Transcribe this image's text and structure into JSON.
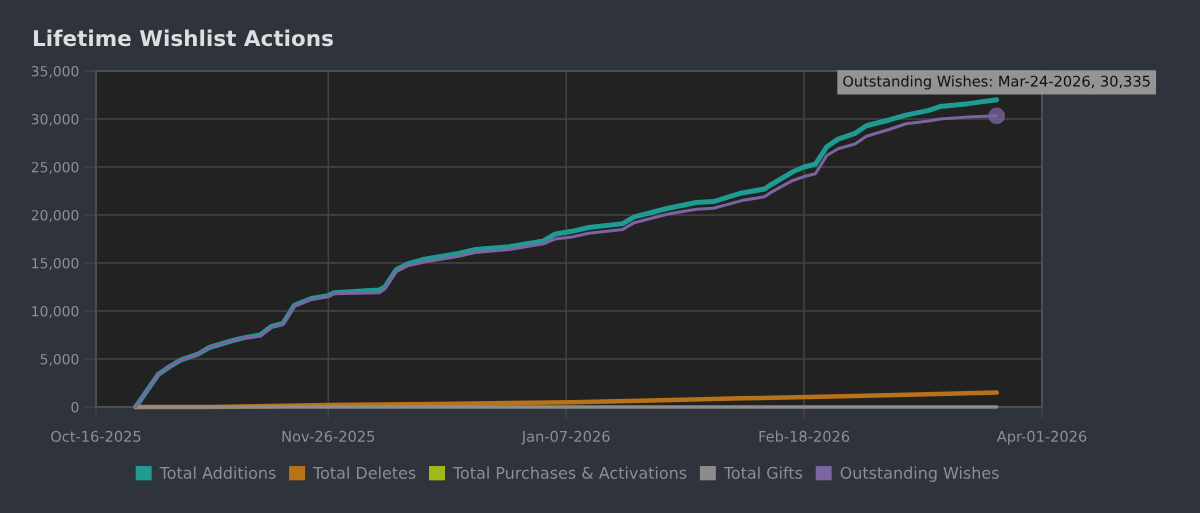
{
  "chart_data": {
    "type": "line",
    "title": "Lifetime Wishlist Actions",
    "xlim": [
      "2025-10-16",
      "2026-04-01"
    ],
    "xticks": [
      {
        "value": "2025-10-16",
        "label": "Oct-16-2025"
      },
      {
        "value": "2025-11-26",
        "label": "Nov-26-2025"
      },
      {
        "value": "2026-01-07",
        "label": "Jan-07-2026"
      },
      {
        "value": "2026-02-18",
        "label": "Feb-18-2026"
      },
      {
        "value": "2026-04-01",
        "label": "Apr-01-2026"
      }
    ],
    "ylim": [
      0,
      35000
    ],
    "yticks": [
      0,
      {
        "value": 5000,
        "label": "5,000"
      },
      {
        "value": 10000,
        "label": "10,000"
      },
      {
        "value": 15000,
        "label": "15,000"
      },
      {
        "value": 20000,
        "label": "20,000"
      },
      {
        "value": 25000,
        "label": "25,000"
      },
      {
        "value": 30000,
        "label": "30,000"
      },
      {
        "value": 35000,
        "label": "35,000"
      }
    ],
    "grid": true,
    "legend": "bottom",
    "series": [
      {
        "name": "Total Additions",
        "color": "#1e9c94",
        "x": [
          "2025-10-23",
          "2025-10-27",
          "2025-10-29",
          "2025-10-31",
          "2025-11-03",
          "2025-11-05",
          "2025-11-09",
          "2025-11-11",
          "2025-11-14",
          "2025-11-16",
          "2025-11-18",
          "2025-11-20",
          "2025-11-23",
          "2025-11-26",
          "2025-11-27",
          "2025-12-05",
          "2025-12-06",
          "2025-12-08",
          "2025-12-10",
          "2025-12-13",
          "2025-12-19",
          "2025-12-22",
          "2025-12-28",
          "2026-01-03",
          "2026-01-05",
          "2026-01-08",
          "2026-01-11",
          "2026-01-17",
          "2026-01-19",
          "2026-01-25",
          "2026-01-30",
          "2026-02-02",
          "2026-02-07",
          "2026-02-11",
          "2026-02-12",
          "2026-02-16",
          "2026-02-18",
          "2026-02-20",
          "2026-02-22",
          "2026-02-24",
          "2026-02-27",
          "2026-03-01",
          "2026-03-05",
          "2026-03-08",
          "2026-03-12",
          "2026-03-14",
          "2026-03-19",
          "2026-03-24"
        ],
        "values": [
          0,
          3400,
          4200,
          4900,
          5500,
          6200,
          6900,
          7200,
          7500,
          8400,
          8700,
          10600,
          11300,
          11600,
          11900,
          12200,
          12500,
          14300,
          14900,
          15400,
          16000,
          16400,
          16700,
          17300,
          18000,
          18300,
          18700,
          19100,
          19800,
          20700,
          21300,
          21400,
          22300,
          22700,
          23100,
          24500,
          25000,
          25300,
          27100,
          27900,
          28500,
          29300,
          29900,
          30400,
          30900,
          31300,
          31600,
          32000
        ]
      },
      {
        "name": "Total Deletes",
        "color": "#b8731a",
        "x": [
          "2025-10-23",
          "2025-11-05",
          "2025-11-26",
          "2025-12-15",
          "2026-01-08",
          "2026-01-24",
          "2026-02-07",
          "2026-02-23",
          "2026-03-10",
          "2026-03-24"
        ],
        "values": [
          0,
          0,
          200,
          300,
          500,
          700,
          900,
          1100,
          1300,
          1500
        ]
      },
      {
        "name": "Total Purchases & Activations",
        "color": "#a0b81a"
      },
      {
        "name": "Total Gifts",
        "color": "#8c8c8c",
        "x": [
          "2025-10-23",
          "2026-03-24"
        ],
        "values": [
          0,
          0
        ]
      },
      {
        "name": "Outstanding Wishes",
        "color": "#7b649f",
        "x": [
          "2025-10-23",
          "2025-10-27",
          "2025-10-29",
          "2025-10-31",
          "2025-11-03",
          "2025-11-05",
          "2025-11-09",
          "2025-11-11",
          "2025-11-14",
          "2025-11-16",
          "2025-11-18",
          "2025-11-20",
          "2025-11-23",
          "2025-11-26",
          "2025-11-27",
          "2025-12-05",
          "2025-12-06",
          "2025-12-08",
          "2025-12-10",
          "2025-12-13",
          "2025-12-19",
          "2025-12-22",
          "2025-12-28",
          "2026-01-03",
          "2026-01-05",
          "2026-01-08",
          "2026-01-11",
          "2026-01-17",
          "2026-01-19",
          "2026-01-25",
          "2026-01-30",
          "2026-02-02",
          "2026-02-07",
          "2026-02-11",
          "2026-02-12",
          "2026-02-16",
          "2026-02-18",
          "2026-02-20",
          "2026-02-22",
          "2026-02-24",
          "2026-02-27",
          "2026-03-01",
          "2026-03-05",
          "2026-03-08",
          "2026-03-12",
          "2026-03-14",
          "2026-03-19",
          "2026-03-24"
        ],
        "values": [
          0,
          3400,
          4200,
          4900,
          5500,
          6200,
          6900,
          7200,
          7400,
          8300,
          8600,
          10500,
          11200,
          11500,
          11800,
          11900,
          12300,
          14100,
          14700,
          15100,
          15700,
          16100,
          16400,
          17000,
          17500,
          17700,
          18100,
          18500,
          19200,
          20100,
          20600,
          20700,
          21500,
          21900,
          22300,
          23600,
          24000,
          24300,
          26200,
          26900,
          27400,
          28200,
          28900,
          29500,
          29800,
          30000,
          30200,
          30335
        ]
      }
    ],
    "annotations": [
      {
        "text": "Outstanding Wishes: Mar-24-2026, 30,335",
        "x": "2026-03-24",
        "y": 30335
      }
    ]
  }
}
